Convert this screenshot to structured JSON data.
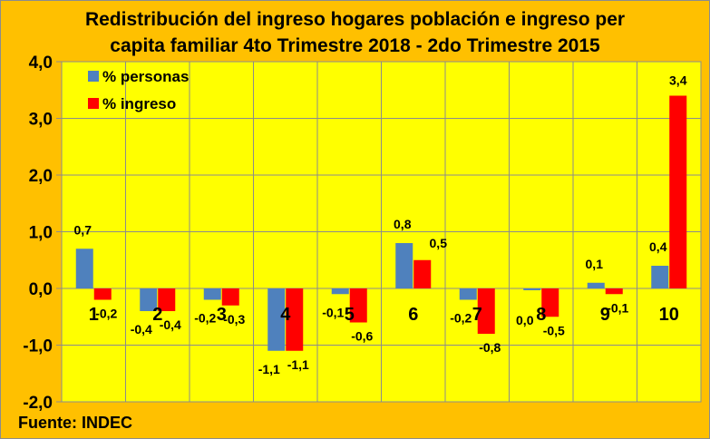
{
  "chart_data": {
    "type": "bar",
    "title_lines": [
      "Redistribución del ingreso hogares población  e ingreso per",
      "capita familiar 4to Trimestre 2018 - 2do Trimestre 2015"
    ],
    "categories": [
      "1",
      "2",
      "3",
      "4",
      "5",
      "6",
      "7",
      "8",
      "9",
      "10"
    ],
    "series": [
      {
        "name": "% personas",
        "color": "#4f81bd",
        "values": [
          0.7,
          -0.4,
          -0.2,
          -1.1,
          -0.1,
          0.8,
          -0.2,
          0.0,
          0.1,
          0.4
        ],
        "labels": [
          "0,7",
          "-0,4",
          "-0,2",
          "-1,1",
          "-0,1",
          "0,8",
          "-0,2",
          "0,0",
          "0,1",
          "0,4"
        ]
      },
      {
        "name": "% ingreso",
        "color": "#ff0000",
        "values": [
          -0.2,
          -0.4,
          -0.3,
          -1.1,
          -0.6,
          0.5,
          -0.8,
          -0.5,
          -0.1,
          3.4
        ],
        "labels": [
          "-0,2",
          "-0,4",
          "-0,3",
          "-1,1",
          "-0,6",
          "0,5",
          "-0,8",
          "-0,5",
          "-0,1",
          "3,4"
        ]
      }
    ],
    "ylim": [
      -2.0,
      4.0
    ],
    "yticks": [
      -2.0,
      -1.0,
      0.0,
      1.0,
      2.0,
      3.0,
      4.0
    ],
    "ytick_labels": [
      "-2,0",
      "-1,0",
      "0,0",
      "1,0",
      "2,0",
      "3,0",
      "4,0"
    ],
    "xlabel": "",
    "ylabel": "",
    "grid": true,
    "legend_position": "top-left",
    "plot_background": "#ffff00",
    "chart_background": "#ffc000"
  },
  "source": "Fuente: INDEC"
}
